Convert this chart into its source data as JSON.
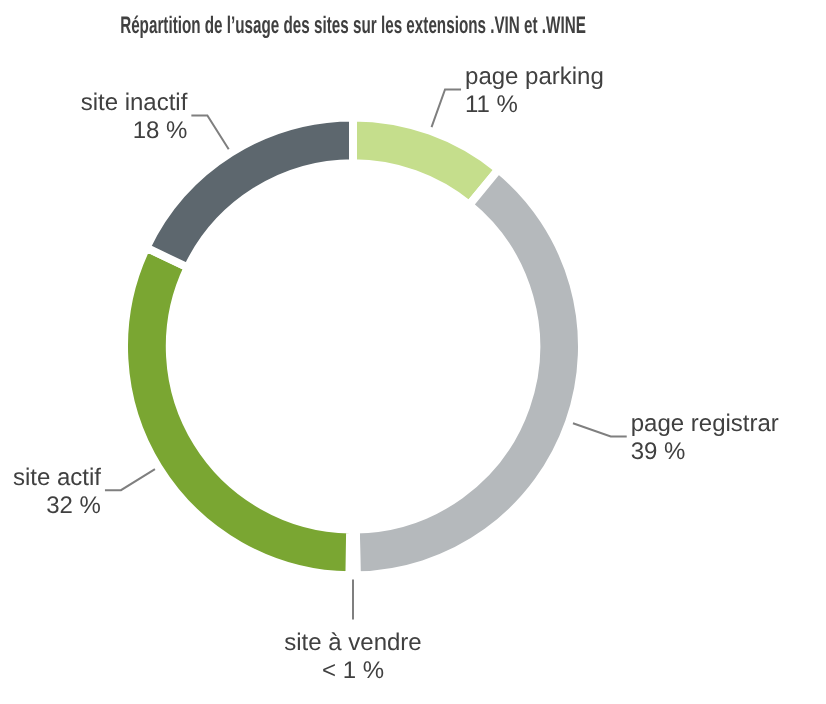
{
  "chart_data": {
    "type": "donut",
    "title": "Répartition de l’usage des sites sur les extensions .VIN et .WINE",
    "categories": [
      "page parking",
      "page registrar",
      "site à vendre",
      "site actif",
      "site inactif"
    ],
    "values": [
      11,
      39,
      0.5,
      32,
      18
    ],
    "value_labels": [
      "11 %",
      "39 %",
      "< 1 %",
      "32 %",
      "18 %"
    ],
    "colors": [
      "#c5de8c",
      "#b5b9bc",
      "#9aa0a4",
      "#7aa632",
      "#5d676e"
    ],
    "legend": false
  }
}
